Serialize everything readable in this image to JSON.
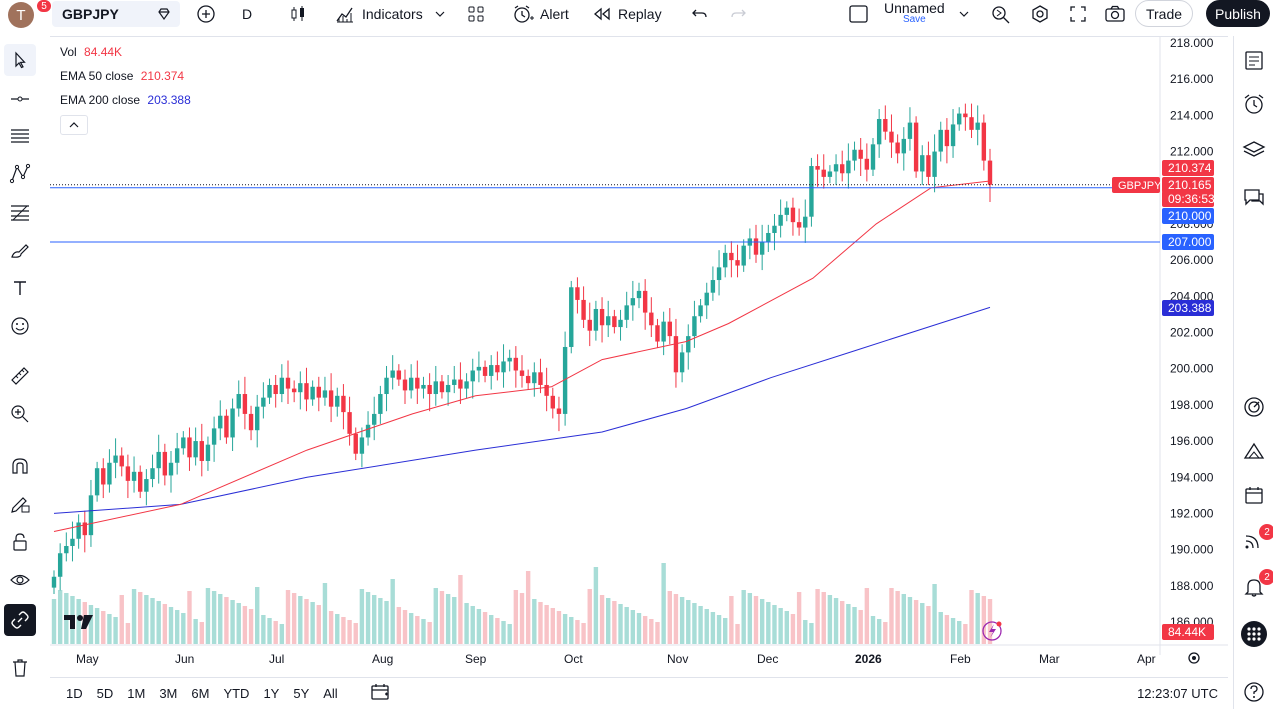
{
  "toolbar": {
    "avatar_letter": "T",
    "avatar_badge": "5",
    "symbol": "GBPJPY",
    "interval": "D",
    "indicators_label": "Indicators",
    "alert_label": "Alert",
    "replay_label": "Replay",
    "layout_name": "Unnamed",
    "layout_save": "Save",
    "trade_label": "Trade",
    "publish_label": "Publish"
  },
  "legend": {
    "vol_label": "Vol",
    "vol_value": "84.44K",
    "ema50_label": "EMA 50 close",
    "ema50_value": "210.374",
    "ema200_label": "EMA 200 close",
    "ema200_value": "203.388"
  },
  "price_axis": {
    "ticks": [
      "218.000",
      "216.000",
      "214.000",
      "212.000",
      "210.000",
      "208.000",
      "206.000",
      "204.000",
      "202.000",
      "200.000",
      "198.000",
      "196.000",
      "194.000",
      "192.000",
      "190.000",
      "188.000",
      "186.000"
    ],
    "label_ema50": "210.374",
    "label_symbol": "GBPJPY",
    "label_price": "210.165",
    "label_countdown": "09:36:53",
    "label_line1": "210.000",
    "label_line2": "207.000",
    "label_ema200": "203.388",
    "label_vol": "84.44K"
  },
  "time_axis": {
    "ticks": [
      "May",
      "Jun",
      "Jul",
      "Aug",
      "Sep",
      "Oct",
      "Nov",
      "Dec",
      "2026",
      "Feb",
      "Mar",
      "Apr"
    ]
  },
  "ranges": [
    "1D",
    "5D",
    "1M",
    "3M",
    "6M",
    "YTD",
    "1Y",
    "5Y",
    "All"
  ],
  "clock": "12:23:07 UTC",
  "right_badges": {
    "streams": "2",
    "alerts": "2"
  },
  "colors": {
    "up": "#26a69a",
    "down": "#f23645",
    "ema50": "#f23645",
    "ema200": "#2a2ed6",
    "hline": "#2962ff",
    "vol_up": "#a8ddd7",
    "vol_down": "#f8c3c7"
  },
  "chart_data": {
    "type": "candlestick",
    "symbol": "GBPJPY",
    "interval": "1D",
    "ylim": [
      186,
      218
    ],
    "horizontal_lines": [
      210.0,
      207.0
    ],
    "last_price": 210.165,
    "ema50_anchor": [
      [
        0,
        191.0
      ],
      [
        30,
        192.5
      ],
      [
        60,
        195.5
      ],
      [
        85,
        197.5
      ],
      [
        100,
        198.5
      ],
      [
        118,
        199.0
      ],
      [
        130,
        200.5
      ],
      [
        150,
        201.5
      ],
      [
        160,
        202.5
      ],
      [
        180,
        205.0
      ],
      [
        195,
        208.0
      ],
      [
        208,
        210.0
      ],
      [
        222,
        210.374
      ]
    ],
    "ema200_anchor": [
      [
        0,
        192.0
      ],
      [
        30,
        192.5
      ],
      [
        60,
        194.0
      ],
      [
        100,
        195.5
      ],
      [
        130,
        196.5
      ],
      [
        150,
        197.8
      ],
      [
        170,
        199.5
      ],
      [
        190,
        201.0
      ],
      [
        210,
        202.5
      ],
      [
        222,
        203.388
      ]
    ],
    "closes": [
      188.5,
      189.8,
      190.2,
      190.6,
      191.5,
      190.8,
      193.0,
      194.5,
      193.6,
      194.8,
      195.2,
      194.6,
      193.8,
      194.3,
      193.2,
      193.9,
      194.5,
      195.4,
      194.1,
      194.8,
      195.6,
      196.2,
      195.1,
      196.0,
      194.9,
      195.8,
      196.7,
      197.4,
      196.2,
      197.8,
      198.6,
      197.5,
      196.6,
      197.9,
      198.4,
      199.1,
      198.6,
      199.5,
      198.9,
      198.7,
      199.2,
      198.3,
      199.0,
      198.4,
      198.8,
      197.9,
      198.5,
      197.6,
      196.4,
      195.3,
      196.2,
      196.9,
      197.5,
      198.6,
      199.5,
      199.9,
      199.4,
      198.8,
      199.5,
      198.9,
      199.1,
      198.6,
      199.3,
      198.7,
      199.1,
      199.4,
      198.9,
      199.3,
      199.9,
      200.1,
      199.6,
      200.2,
      199.8,
      200.4,
      200.6,
      199.9,
      199.6,
      199.2,
      199.8,
      199.1,
      198.5,
      197.8,
      197.5,
      201.2,
      204.5,
      203.8,
      202.7,
      202.1,
      203.3,
      202.4,
      202.9,
      202.3,
      202.7,
      203.5,
      203.9,
      204.3,
      203.1,
      202.4,
      201.5,
      202.6,
      201.8,
      199.8,
      200.9,
      201.8,
      202.9,
      203.5,
      204.2,
      204.9,
      205.6,
      206.4,
      206.0,
      205.7,
      206.8,
      207.2,
      206.3,
      207.0,
      207.5,
      207.9,
      208.5,
      208.9,
      208.1,
      207.8,
      208.4,
      211.2,
      211.0,
      210.6,
      210.9,
      211.3,
      210.8,
      211.5,
      212.1,
      211.6,
      211.0,
      212.4,
      213.8,
      213.1,
      212.5,
      211.9,
      212.7,
      213.6,
      210.9,
      211.8,
      210.6,
      212.0,
      213.2,
      212.3,
      213.5,
      214.1,
      213.9,
      213.2,
      213.6,
      211.5,
      210.165
    ],
    "volume_note": "volume bars drawn on lower panel"
  }
}
